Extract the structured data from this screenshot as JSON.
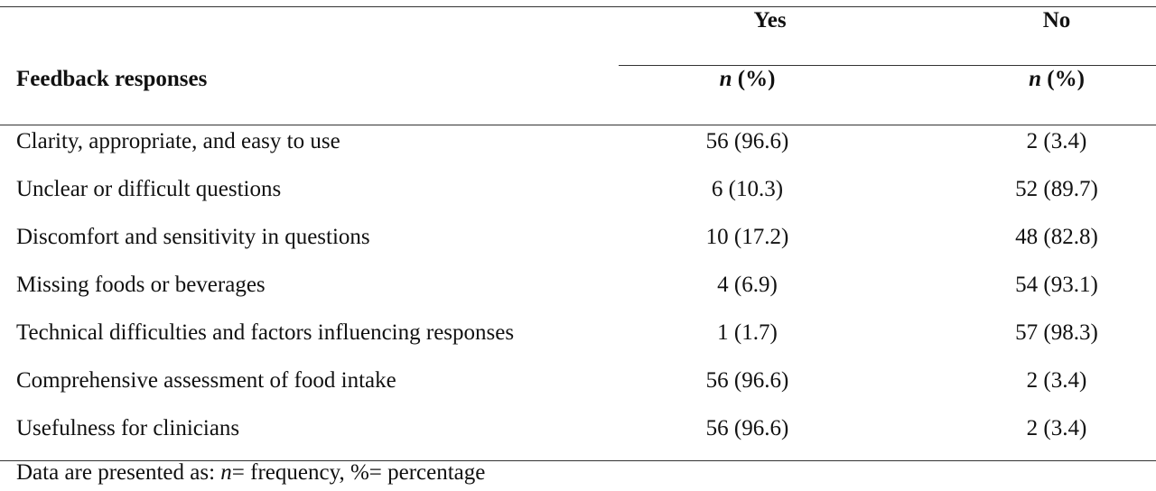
{
  "table": {
    "columns": {
      "row_header": "Feedback responses",
      "yes": "Yes",
      "no": "No",
      "subheader_n": "n",
      "subheader_pct": " (%)"
    },
    "rows": [
      {
        "label": "Clarity, appropriate, and easy to use",
        "yes": "56 (96.6)",
        "no": "2 (3.4)"
      },
      {
        "label": "Unclear or difficult questions",
        "yes": "6 (10.3)",
        "no": "52 (89.7)"
      },
      {
        "label": "Discomfort and sensitivity in questions",
        "yes": "10 (17.2)",
        "no": "48 (82.8)"
      },
      {
        "label": "Missing foods or beverages",
        "yes": "4 (6.9)",
        "no": "54 (93.1)"
      },
      {
        "label": "Technical difficulties and factors influencing responses",
        "yes": "1 (1.7)",
        "no": "57 (98.3)"
      },
      {
        "label": "Comprehensive assessment of food intake",
        "yes": "56 (96.6)",
        "no": "2 (3.4)"
      },
      {
        "label": "Usefulness for clinicians",
        "yes": "56 (96.6)",
        "no": "2 (3.4)"
      }
    ]
  },
  "footnote": {
    "prefix": "Data are presented as: ",
    "n_symbol": "n",
    "rest": "= frequency, %= percentage"
  }
}
